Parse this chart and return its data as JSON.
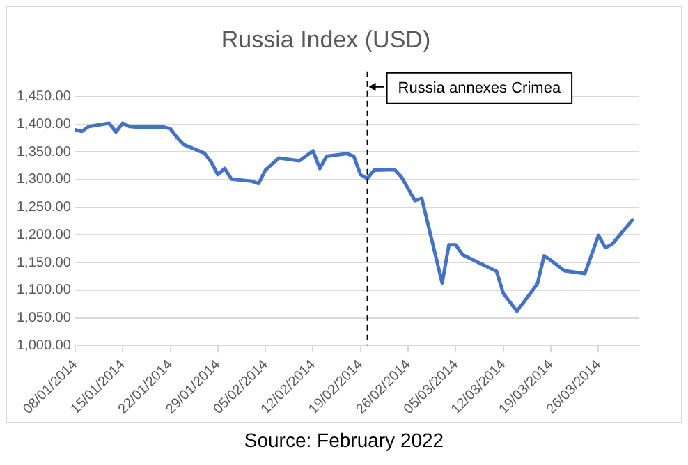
{
  "chart_data": {
    "type": "line",
    "title": "Russia Index (USD)",
    "x": [
      "2014-01-08",
      "2014-01-09",
      "2014-01-10",
      "2014-01-13",
      "2014-01-14",
      "2014-01-15",
      "2014-01-16",
      "2014-01-17",
      "2014-01-21",
      "2014-01-22",
      "2014-01-23",
      "2014-01-24",
      "2014-01-27",
      "2014-01-28",
      "2014-01-29",
      "2014-01-30",
      "2014-01-31",
      "2014-02-03",
      "2014-02-04",
      "2014-02-05",
      "2014-02-07",
      "2014-02-10",
      "2014-02-12",
      "2014-02-13",
      "2014-02-14",
      "2014-02-17",
      "2014-02-18",
      "2014-02-19",
      "2014-02-20",
      "2014-02-21",
      "2014-02-24",
      "2014-02-25",
      "2014-02-27",
      "2014-02-28",
      "2014-03-03",
      "2014-03-04",
      "2014-03-05",
      "2014-03-06",
      "2014-03-11",
      "2014-03-12",
      "2014-03-14",
      "2014-03-17",
      "2014-03-18",
      "2014-03-19",
      "2014-03-21",
      "2014-03-24",
      "2014-03-26",
      "2014-03-27",
      "2014-03-28",
      "2014-03-31"
    ],
    "series": [
      {
        "color": "#4472c4",
        "values": [
          1390,
          1387,
          1396,
          1402,
          1386,
          1402,
          1396,
          1395,
          1395,
          1392,
          1376,
          1363,
          1348,
          1332,
          1309,
          1320,
          1301,
          1297,
          1293,
          1317,
          1339,
          1334,
          1352,
          1320,
          1342,
          1347,
          1342,
          1309,
          1302,
          1317,
          1318,
          1305,
          1262,
          1266,
          1113,
          1182,
          1182,
          1164,
          1134,
          1094,
          1062,
          1111,
          1162,
          1154,
          1135,
          1130,
          1199,
          1177,
          1183,
          1227
        ]
      }
    ],
    "xlim": [
      "2014-01-08",
      "2014-04-01"
    ],
    "xticks": [
      {
        "value": "2014-01-08",
        "label": "08/01/2014"
      },
      {
        "value": "2014-01-15",
        "label": "15/01/2014"
      },
      {
        "value": "2014-01-22",
        "label": "22/01/2014"
      },
      {
        "value": "2014-01-29",
        "label": "29/01/2014"
      },
      {
        "value": "2014-02-05",
        "label": "05/02/2014"
      },
      {
        "value": "2014-02-12",
        "label": "12/02/2014"
      },
      {
        "value": "2014-02-19",
        "label": "19/02/2014"
      },
      {
        "value": "2014-02-26",
        "label": "26/02/2014"
      },
      {
        "value": "2014-03-05",
        "label": "05/03/2014"
      },
      {
        "value": "2014-03-12",
        "label": "12/03/2014"
      },
      {
        "value": "2014-03-19",
        "label": "19/03/2014"
      },
      {
        "value": "2014-03-26",
        "label": "26/03/2014"
      }
    ],
    "ylim": [
      1000,
      1450
    ],
    "yticks": [
      {
        "value": 1000,
        "label": "1,000.00"
      },
      {
        "value": 1050,
        "label": "1,050.00"
      },
      {
        "value": 1100,
        "label": "1,100.00"
      },
      {
        "value": 1150,
        "label": "1,150.00"
      },
      {
        "value": 1200,
        "label": "1,200.00"
      },
      {
        "value": 1250,
        "label": "1,250.00"
      },
      {
        "value": 1300,
        "label": "1,300.00"
      },
      {
        "value": 1350,
        "label": "1,350.00"
      },
      {
        "value": 1400,
        "label": "1,400.00"
      },
      {
        "value": 1450,
        "label": "1,450.00"
      }
    ],
    "grid": "y",
    "legend": false,
    "marker": "none",
    "line_style": "solid",
    "ref_lines": [
      {
        "axis": "x",
        "value": "2014-02-20",
        "label": "Russia annexes Crimea",
        "color": "#000000",
        "line_style": "dashed"
      }
    ],
    "annotations": [
      "Source: February 2022"
    ]
  }
}
